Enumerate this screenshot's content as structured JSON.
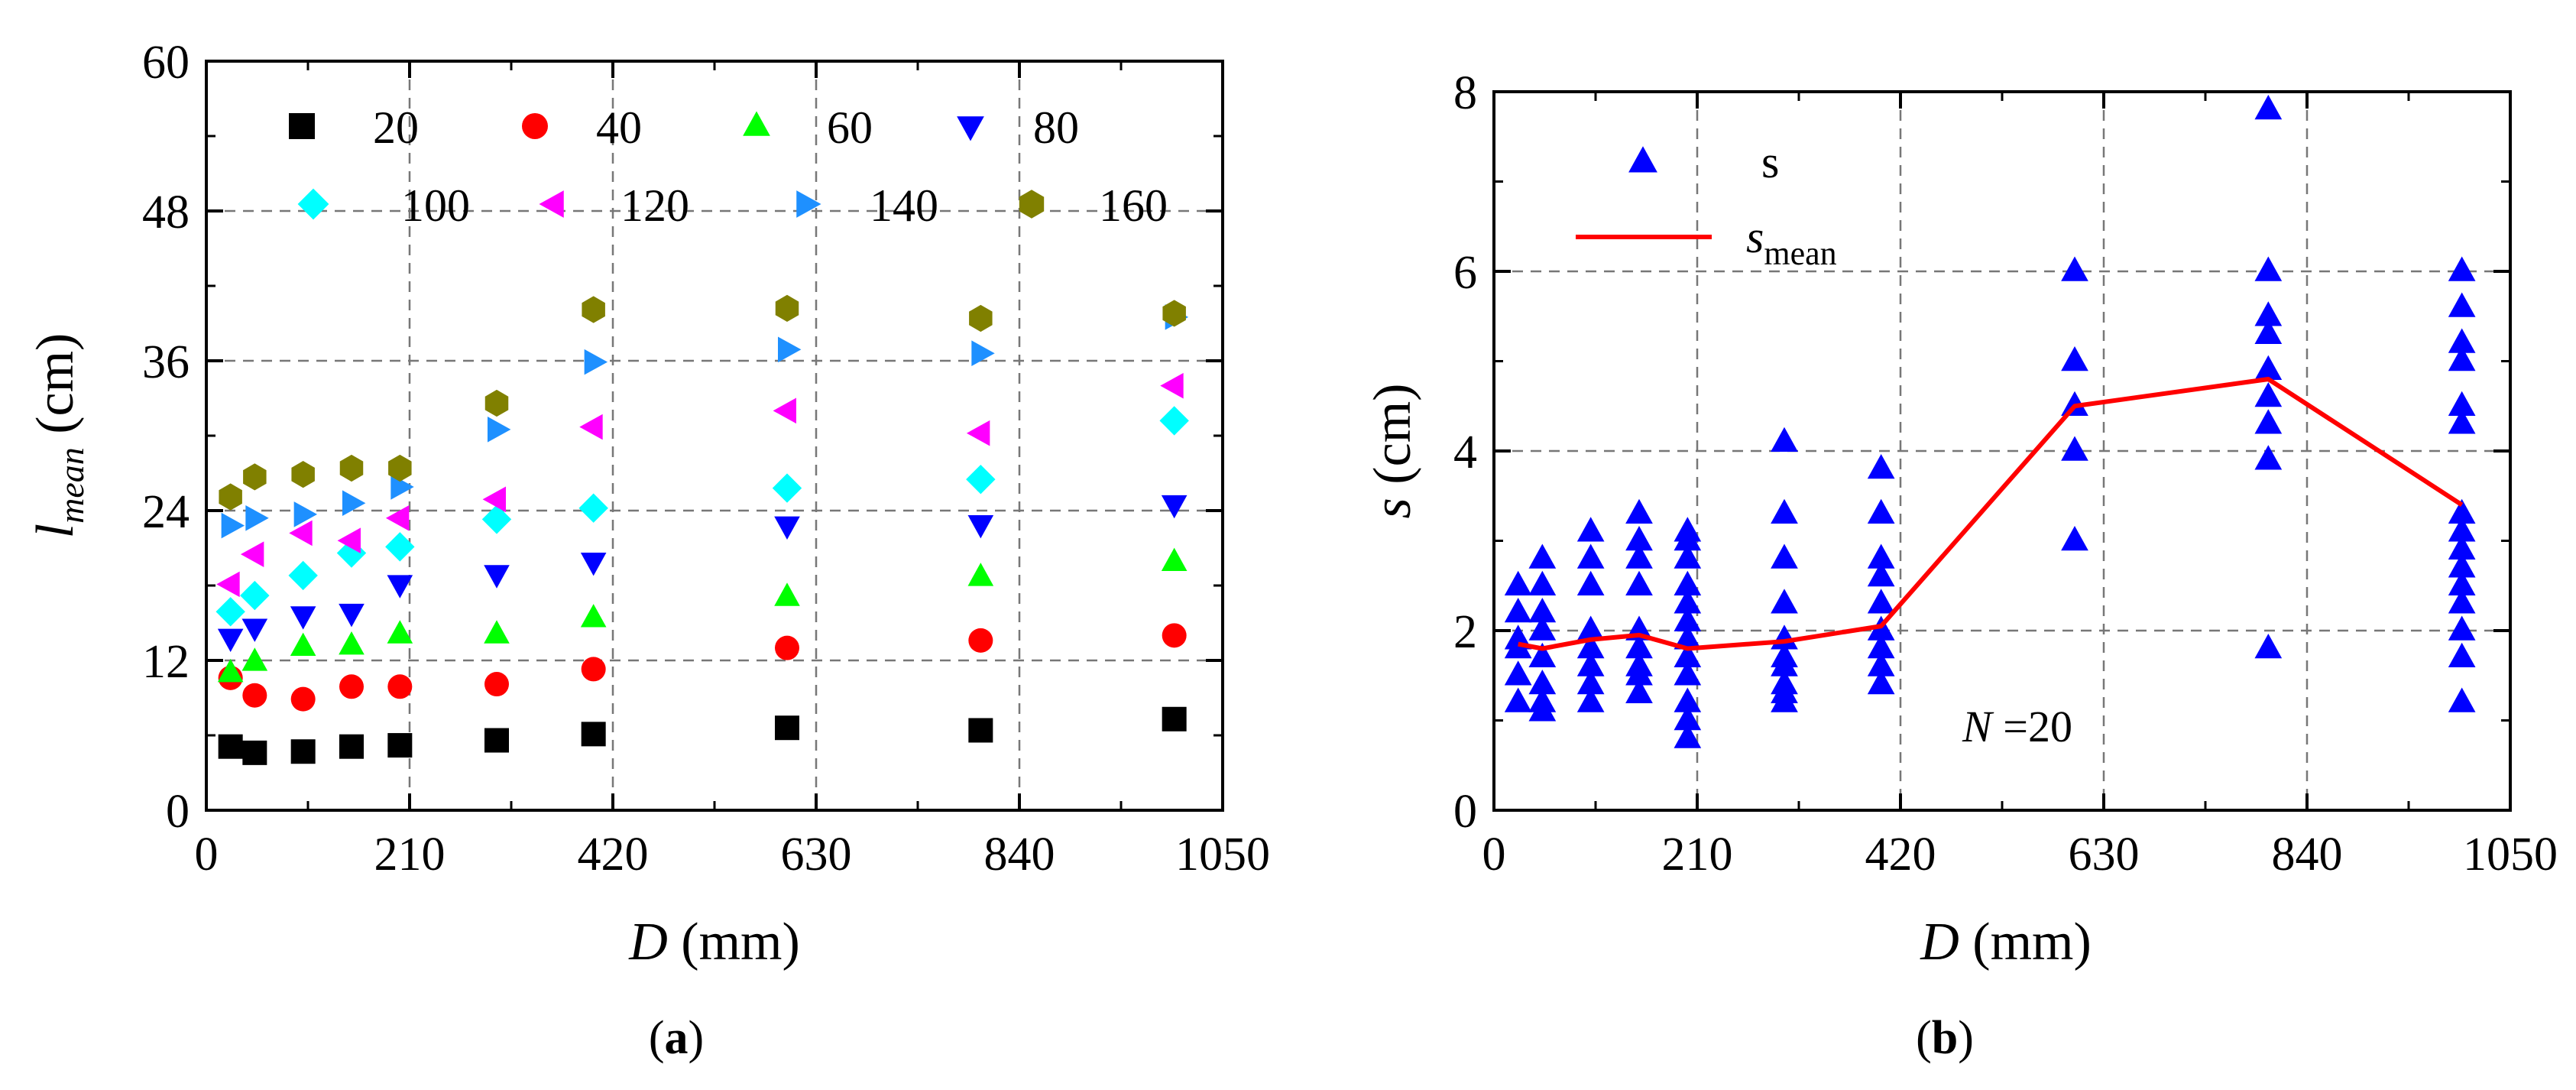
{
  "chart_data": [
    {
      "panel": "(a)",
      "panel_label": {
        "pre": "(",
        "bold": "a",
        "post": ")"
      },
      "type": "scatter",
      "title": "",
      "xlabel": {
        "symbol": "D",
        "unit": " (mm)"
      },
      "ylabel": {
        "symbol": "l",
        "sub": "mean",
        "unit": " (cm)"
      },
      "xlim": [
        0,
        1050
      ],
      "ylim": [
        0,
        60
      ],
      "xticks": [
        "0",
        "210",
        "420",
        "630",
        "840",
        "1050"
      ],
      "yticks": [
        "0",
        "12",
        "24",
        "36",
        "48",
        "60"
      ],
      "grid": true,
      "legend_position": "top-left, two rows",
      "series": [
        {
          "name": "20",
          "marker": "square",
          "color": "#000000",
          "x": [
            25,
            50,
            100,
            150,
            200,
            300,
            400,
            600,
            800,
            1000
          ],
          "y": [
            5.1,
            4.6,
            4.7,
            5.1,
            5.2,
            5.6,
            6.1,
            6.6,
            6.4,
            7.3
          ]
        },
        {
          "name": "40",
          "marker": "circle",
          "color": "#ff0000",
          "x": [
            25,
            50,
            100,
            150,
            200,
            300,
            400,
            600,
            800,
            1000
          ],
          "y": [
            10.6,
            9.2,
            8.9,
            9.9,
            9.9,
            10.1,
            11.3,
            13.0,
            13.6,
            14.0
          ]
        },
        {
          "name": "60",
          "marker": "tri-up",
          "color": "#00ff00",
          "x": [
            25,
            50,
            100,
            150,
            200,
            300,
            400,
            600,
            800,
            1000
          ],
          "y": [
            11.0,
            11.9,
            13.1,
            13.2,
            14.1,
            14.1,
            15.4,
            17.1,
            18.7,
            19.9
          ]
        },
        {
          "name": "80",
          "marker": "tri-down",
          "color": "#0000ff",
          "x": [
            25,
            50,
            100,
            150,
            200,
            300,
            400,
            600,
            800,
            1000
          ],
          "y": [
            13.8,
            14.6,
            15.6,
            15.8,
            18.1,
            18.9,
            19.9,
            22.8,
            22.9,
            24.5
          ]
        },
        {
          "name": "100",
          "marker": "diamond",
          "color": "#00ffff",
          "x": [
            25,
            50,
            100,
            150,
            200,
            300,
            400,
            600,
            800,
            1000
          ],
          "y": [
            15.9,
            17.2,
            18.8,
            20.6,
            21.1,
            23.3,
            24.2,
            25.8,
            26.5,
            31.2
          ]
        },
        {
          "name": "120",
          "marker": "tri-left",
          "color": "#ff00ff",
          "x": [
            25,
            50,
            100,
            150,
            200,
            300,
            400,
            600,
            800,
            1000
          ],
          "y": [
            18.1,
            20.5,
            22.2,
            21.6,
            23.4,
            24.9,
            30.7,
            32.0,
            30.2,
            34.0
          ]
        },
        {
          "name": "140",
          "marker": "tri-right",
          "color": "#1e90ff",
          "x": [
            25,
            50,
            100,
            150,
            200,
            300,
            400,
            600,
            800,
            1000
          ],
          "y": [
            22.8,
            23.4,
            23.7,
            24.6,
            25.9,
            30.5,
            35.9,
            36.9,
            36.6,
            39.5
          ]
        },
        {
          "name": "160",
          "marker": "hexagon",
          "color": "#808000",
          "x": [
            25,
            50,
            100,
            150,
            200,
            300,
            400,
            600,
            800,
            1000
          ],
          "y": [
            25.1,
            26.7,
            26.9,
            27.4,
            27.4,
            32.6,
            40.1,
            40.2,
            39.4,
            39.8
          ]
        }
      ]
    },
    {
      "panel": "(b)",
      "panel_label": {
        "pre": "(",
        "bold": "b",
        "post": ")"
      },
      "type": "scatter+line",
      "title": "",
      "xlabel": {
        "symbol": "D",
        "unit": " (mm)"
      },
      "ylabel": {
        "symbol": "s",
        "unit": " (cm)"
      },
      "xlim": [
        0,
        1050
      ],
      "ylim": [
        0,
        8
      ],
      "xticks": [
        "0",
        "210",
        "420",
        "630",
        "840",
        "1050"
      ],
      "yticks": [
        "0",
        "2",
        "4",
        "6",
        "8"
      ],
      "grid": true,
      "legend_position": "top-left",
      "annotation": {
        "symbol": "N",
        "text": " =20"
      },
      "series": [
        {
          "name": "s",
          "marker": "tri-up",
          "color": "#0000ff",
          "points": [
            [
              25,
              2.5
            ],
            [
              25,
              2.2
            ],
            [
              25,
              1.9
            ],
            [
              25,
              1.8
            ],
            [
              25,
              1.5
            ],
            [
              25,
              1.2
            ],
            [
              50,
              2.8
            ],
            [
              50,
              2.5
            ],
            [
              50,
              2.2
            ],
            [
              50,
              2.0
            ],
            [
              50,
              1.7
            ],
            [
              50,
              1.4
            ],
            [
              50,
              1.2
            ],
            [
              50,
              1.1
            ],
            [
              100,
              3.1
            ],
            [
              100,
              2.8
            ],
            [
              100,
              2.5
            ],
            [
              100,
              2.0
            ],
            [
              100,
              1.8
            ],
            [
              100,
              1.6
            ],
            [
              100,
              1.4
            ],
            [
              100,
              1.2
            ],
            [
              150,
              3.3
            ],
            [
              150,
              3.0
            ],
            [
              150,
              2.8
            ],
            [
              150,
              2.5
            ],
            [
              150,
              2.0
            ],
            [
              150,
              1.8
            ],
            [
              150,
              1.6
            ],
            [
              150,
              1.5
            ],
            [
              150,
              1.3
            ],
            [
              200,
              3.1
            ],
            [
              200,
              3.0
            ],
            [
              200,
              2.8
            ],
            [
              200,
              2.5
            ],
            [
              200,
              2.3
            ],
            [
              200,
              2.1
            ],
            [
              200,
              1.9
            ],
            [
              200,
              1.7
            ],
            [
              200,
              1.5
            ],
            [
              200,
              1.2
            ],
            [
              200,
              1.0
            ],
            [
              200,
              0.8
            ],
            [
              300,
              4.1
            ],
            [
              300,
              3.3
            ],
            [
              300,
              2.8
            ],
            [
              300,
              2.3
            ],
            [
              300,
              1.9
            ],
            [
              300,
              1.7
            ],
            [
              300,
              1.6
            ],
            [
              300,
              1.4
            ],
            [
              300,
              1.3
            ],
            [
              300,
              1.2
            ],
            [
              400,
              3.8
            ],
            [
              400,
              3.3
            ],
            [
              400,
              2.8
            ],
            [
              400,
              2.6
            ],
            [
              400,
              2.3
            ],
            [
              400,
              2.0
            ],
            [
              400,
              1.8
            ],
            [
              400,
              1.6
            ],
            [
              400,
              1.4
            ],
            [
              600,
              6.0
            ],
            [
              600,
              5.0
            ],
            [
              600,
              4.5
            ],
            [
              600,
              4.0
            ],
            [
              600,
              3.0
            ],
            [
              800,
              7.8
            ],
            [
              800,
              6.0
            ],
            [
              800,
              5.5
            ],
            [
              800,
              5.3
            ],
            [
              800,
              4.9
            ],
            [
              800,
              4.6
            ],
            [
              800,
              4.3
            ],
            [
              800,
              3.9
            ],
            [
              800,
              1.8
            ],
            [
              1000,
              6.0
            ],
            [
              1000,
              5.6
            ],
            [
              1000,
              5.2
            ],
            [
              1000,
              5.0
            ],
            [
              1000,
              4.5
            ],
            [
              1000,
              4.3
            ],
            [
              1000,
              3.3
            ],
            [
              1000,
              3.1
            ],
            [
              1000,
              2.9
            ],
            [
              1000,
              2.7
            ],
            [
              1000,
              2.5
            ],
            [
              1000,
              2.3
            ],
            [
              1000,
              2.0
            ],
            [
              1000,
              1.7
            ],
            [
              1000,
              1.2
            ]
          ]
        },
        {
          "name": {
            "symbol": "s",
            "sub": "mean"
          },
          "type": "line",
          "color": "#ff0000",
          "x": [
            25,
            50,
            100,
            150,
            200,
            300,
            400,
            600,
            800,
            1000
          ],
          "y": [
            1.85,
            1.8,
            1.9,
            1.95,
            1.8,
            1.88,
            2.05,
            4.5,
            4.8,
            3.4
          ]
        }
      ]
    }
  ]
}
